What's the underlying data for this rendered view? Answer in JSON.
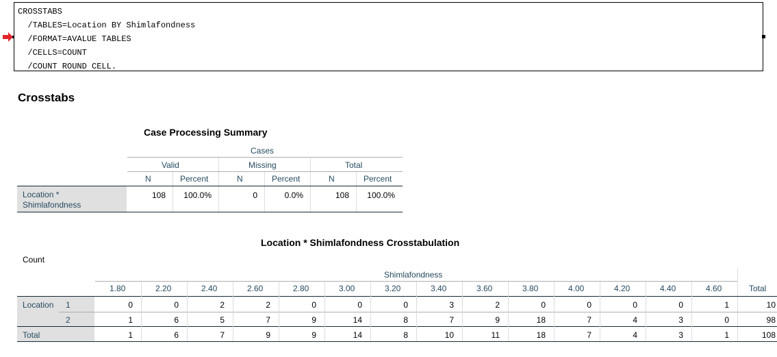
{
  "syntax": {
    "lines": [
      "CROSSTABS",
      "  /TABLES=Location BY Shimlafondness",
      "  /FORMAT=AVALUE TABLES",
      "  /CELLS=COUNT",
      "  /COUNT ROUND CELL."
    ]
  },
  "heading": "Crosstabs",
  "case_summary": {
    "title": "Case Processing Summary",
    "cases_label": "Cases",
    "groups": [
      "Valid",
      "Missing",
      "Total"
    ],
    "subheaders": [
      "N",
      "Percent",
      "N",
      "Percent",
      "N",
      "Percent"
    ],
    "row_label_line1": "Location *",
    "row_label_line2": "Shimlafondness",
    "values": [
      "108",
      "100.0%",
      "0",
      "0.0%",
      "108",
      "100.0%"
    ]
  },
  "crosstab": {
    "title": "Location * Shimlafondness Crosstabulation",
    "count_label": "Count",
    "column_var": "Shimlafondness",
    "columns": [
      "1.80",
      "2.20",
      "2.40",
      "2.60",
      "2.80",
      "3.00",
      "3.20",
      "3.40",
      "3.60",
      "3.80",
      "4.00",
      "4.20",
      "4.40",
      "4.60"
    ],
    "total_label": "Total",
    "row_var": "Location",
    "rows": [
      {
        "label": "1",
        "values": [
          "0",
          "0",
          "2",
          "2",
          "0",
          "0",
          "0",
          "3",
          "2",
          "0",
          "0",
          "0",
          "0",
          "1"
        ],
        "total": "10"
      },
      {
        "label": "2",
        "values": [
          "1",
          "6",
          "5",
          "7",
          "9",
          "14",
          "8",
          "7",
          "9",
          "18",
          "7",
          "4",
          "3",
          "0"
        ],
        "total": "98"
      }
    ],
    "total_row": {
      "label": "Total",
      "values": [
        "1",
        "6",
        "7",
        "9",
        "9",
        "14",
        "8",
        "10",
        "11",
        "18",
        "7",
        "4",
        "3",
        "1"
      ],
      "total": "108"
    }
  }
}
